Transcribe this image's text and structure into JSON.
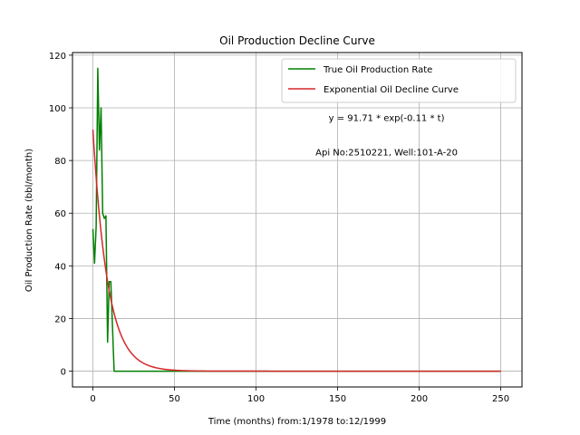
{
  "chart_data": {
    "type": "line",
    "title": "Oil Production Decline Curve",
    "xlabel": "Time (months) from:1/1978 to:12/1999",
    "ylabel": "Oil Production Rate (bbl/month)",
    "xlim": [
      -12.5,
      263
    ],
    "ylim": [
      -6,
      121
    ],
    "grid": true,
    "legend_position": "top-right",
    "xticks": [
      0,
      50,
      100,
      150,
      200,
      250
    ],
    "yticks": [
      0,
      20,
      40,
      60,
      80,
      100,
      120
    ],
    "annotations": [
      {
        "text": "y = 91.71 * exp(-0.11 * t)",
        "x": 180,
        "y": 95
      },
      {
        "text": "Api No:2510221, Well:101-A-20",
        "x": 180,
        "y": 82
      }
    ],
    "series": [
      {
        "name": "True Oil Production Rate",
        "color": "#008000",
        "x": [
          0,
          1,
          2,
          3,
          4,
          5,
          6,
          7,
          8,
          9,
          10,
          11,
          12,
          13,
          250
        ],
        "y": [
          54,
          41,
          55,
          115,
          84,
          100,
          60,
          58,
          59,
          11,
          34,
          34,
          17,
          0,
          0
        ]
      },
      {
        "name": "Exponential Oil Decline Curve",
        "color": "#d62728",
        "model": {
          "a": 91.71,
          "b": -0.11,
          "t_min": 0,
          "t_max": 250
        }
      }
    ]
  }
}
